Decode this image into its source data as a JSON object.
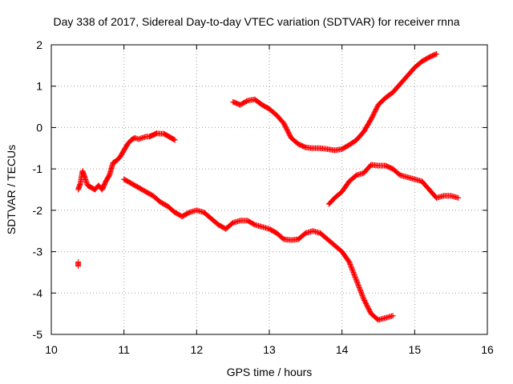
{
  "chart_data": {
    "type": "scatter",
    "title": "Day 338 of 2017, Sidereal Day-to-day VTEC variation (SDTVAR) for receiver rnna",
    "xlabel": "GPS time / hours",
    "ylabel": "SDTVAR / TECUs",
    "xlim": [
      10,
      16
    ],
    "ylim": [
      -5,
      2
    ],
    "xticks": [
      10,
      11,
      12,
      13,
      14,
      15,
      16
    ],
    "yticks": [
      -5,
      -4,
      -3,
      -2,
      -1,
      0,
      1,
      2
    ],
    "grid": true,
    "marker": "+",
    "color": "#ff0000",
    "series": [
      {
        "name": "track-1",
        "x": [
          10.37,
          10.37
        ],
        "y": [
          -3.25,
          -3.35
        ]
      },
      {
        "name": "track-2",
        "x": [
          10.37,
          10.4,
          10.43,
          10.46,
          10.5,
          10.55,
          10.6,
          10.65,
          10.7,
          10.75,
          10.8,
          10.85,
          10.9,
          10.95,
          11.0,
          11.05,
          11.1,
          11.15,
          11.2,
          11.25,
          11.3,
          11.35,
          11.4,
          11.45,
          11.5,
          11.55,
          11.6,
          11.65,
          11.7
        ],
        "y": [
          -1.5,
          -1.35,
          -1.05,
          -1.2,
          -1.4,
          -1.45,
          -1.5,
          -1.4,
          -1.5,
          -1.3,
          -1.15,
          -0.85,
          -0.8,
          -0.7,
          -0.55,
          -0.4,
          -0.3,
          -0.25,
          -0.28,
          -0.25,
          -0.22,
          -0.22,
          -0.18,
          -0.14,
          -0.15,
          -0.15,
          -0.2,
          -0.25,
          -0.3
        ]
      },
      {
        "name": "track-3",
        "x": [
          11.0,
          11.1,
          11.2,
          11.3,
          11.4,
          11.5,
          11.6,
          11.7,
          11.8,
          11.9,
          12.0,
          12.1,
          12.2,
          12.3,
          12.4,
          12.5,
          12.6,
          12.7,
          12.8,
          12.9,
          13.0,
          13.1,
          13.2,
          13.3,
          13.4,
          13.5,
          13.6,
          13.7,
          13.8,
          13.9,
          14.0,
          14.1,
          14.2,
          14.3,
          14.4,
          14.5,
          14.6,
          14.7
        ],
        "y": [
          -1.25,
          -1.35,
          -1.45,
          -1.55,
          -1.65,
          -1.8,
          -1.9,
          -2.05,
          -2.15,
          -2.05,
          -2.0,
          -2.05,
          -2.2,
          -2.35,
          -2.45,
          -2.3,
          -2.25,
          -2.25,
          -2.35,
          -2.4,
          -2.45,
          -2.55,
          -2.7,
          -2.72,
          -2.7,
          -2.55,
          -2.5,
          -2.55,
          -2.7,
          -2.85,
          -3.0,
          -3.25,
          -3.7,
          -4.15,
          -4.5,
          -4.65,
          -4.6,
          -4.55
        ]
      },
      {
        "name": "track-4",
        "x": [
          12.5,
          12.6,
          12.7,
          12.8,
          12.9,
          13.0,
          13.1,
          13.2,
          13.3,
          13.4,
          13.5,
          13.6,
          13.7,
          13.8,
          13.9,
          14.0,
          14.1,
          14.2,
          14.3,
          14.4,
          14.5,
          14.6,
          14.7,
          14.8,
          14.9,
          15.0,
          15.1,
          15.2,
          15.3
        ],
        "y": [
          0.62,
          0.55,
          0.65,
          0.68,
          0.55,
          0.45,
          0.3,
          0.1,
          -0.25,
          -0.4,
          -0.48,
          -0.5,
          -0.5,
          -0.52,
          -0.55,
          -0.52,
          -0.42,
          -0.3,
          -0.1,
          0.2,
          0.55,
          0.72,
          0.85,
          1.05,
          1.25,
          1.45,
          1.6,
          1.7,
          1.78
        ]
      },
      {
        "name": "track-5",
        "x": [
          13.82,
          13.9,
          14.0,
          14.1,
          14.2,
          14.3,
          14.4,
          14.5,
          14.6,
          14.7,
          14.8,
          14.9,
          15.0,
          15.1,
          15.2,
          15.3,
          15.4,
          15.5,
          15.6
        ],
        "y": [
          -1.85,
          -1.7,
          -1.55,
          -1.3,
          -1.15,
          -1.1,
          -0.9,
          -0.92,
          -0.92,
          -1.0,
          -1.15,
          -1.2,
          -1.25,
          -1.3,
          -1.5,
          -1.7,
          -1.65,
          -1.65,
          -1.7
        ]
      }
    ]
  }
}
